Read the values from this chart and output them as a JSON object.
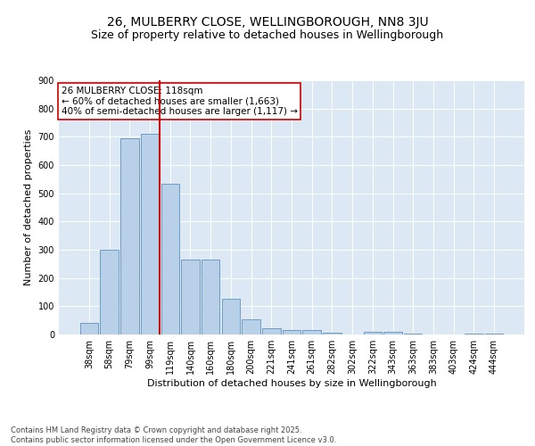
{
  "title_line1": "26, MULBERRY CLOSE, WELLINGBOROUGH, NN8 3JU",
  "title_line2": "Size of property relative to detached houses in Wellingborough",
  "xlabel": "Distribution of detached houses by size in Wellingborough",
  "ylabel": "Number of detached properties",
  "categories": [
    "38sqm",
    "58sqm",
    "79sqm",
    "99sqm",
    "119sqm",
    "140sqm",
    "160sqm",
    "180sqm",
    "200sqm",
    "221sqm",
    "241sqm",
    "261sqm",
    "282sqm",
    "302sqm",
    "322sqm",
    "343sqm",
    "363sqm",
    "383sqm",
    "403sqm",
    "424sqm",
    "444sqm"
  ],
  "values": [
    42,
    300,
    695,
    710,
    535,
    265,
    265,
    125,
    55,
    22,
    15,
    15,
    5,
    0,
    8,
    8,
    3,
    0,
    0,
    3,
    2
  ],
  "bar_color": "#b8d0e8",
  "bar_edge_color": "#6090bb",
  "vline_color": "#cc0000",
  "annotation_text": "26 MULBERRY CLOSE: 118sqm\n← 60% of detached houses are smaller (1,663)\n40% of semi-detached houses are larger (1,117) →",
  "annotation_box_color": "#ffffff",
  "annotation_box_edge": "#cc0000",
  "ylim": [
    0,
    900
  ],
  "yticks": [
    0,
    100,
    200,
    300,
    400,
    500,
    600,
    700,
    800,
    900
  ],
  "background_color": "#dce9f5",
  "footnote": "Contains HM Land Registry data © Crown copyright and database right 2025.\nContains public sector information licensed under the Open Government Licence v3.0.",
  "title_fontsize": 10,
  "subtitle_fontsize": 9,
  "axis_label_fontsize": 8,
  "tick_fontsize": 7,
  "annotation_fontsize": 7.5
}
